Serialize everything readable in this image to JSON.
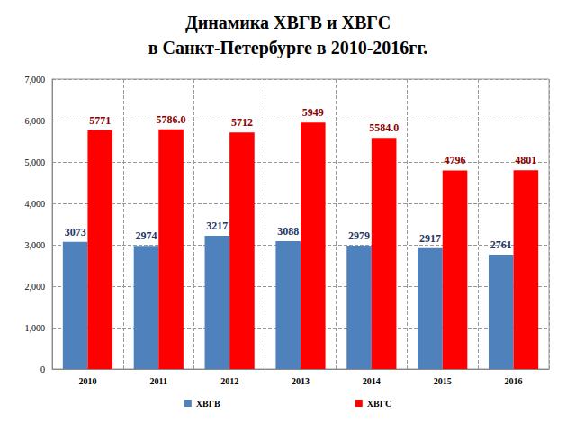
{
  "chart_data": {
    "type": "bar",
    "title": "Динамика ХВГВ и ХВГС\nв Санкт-Петербурге в 2010-2016гг.",
    "categories": [
      "2010",
      "2011",
      "2012",
      "2013",
      "2014",
      "2015",
      "2016"
    ],
    "series": [
      {
        "name": "ХВГВ",
        "color": "#4f81bd",
        "values": [
          3073,
          2974,
          3217,
          3088,
          2979,
          2917,
          2761
        ]
      },
      {
        "name": "ХВГС",
        "color": "#ff0000",
        "values": [
          5771,
          5786,
          5712,
          5949,
          5584,
          4796,
          4801
        ],
        "value_labels": [
          "5771",
          "5786.0",
          "5712",
          "5949",
          "5584.0",
          "4796",
          "4801"
        ]
      }
    ],
    "ylim": [
      0,
      7000
    ],
    "yticks": [
      0,
      {
        "value": 1000,
        "label": "1,000"
      },
      {
        "value": 2000,
        "label": "2,000"
      },
      {
        "value": 3000,
        "label": "3,000"
      },
      {
        "value": 4000,
        "label": "4,000"
      },
      {
        "value": 5000,
        "label": "5,000"
      },
      {
        "value": 6000,
        "label": "6,000"
      },
      {
        "value": 7000,
        "label": "7,000"
      }
    ],
    "grid": true,
    "legend": "bottom",
    "data_labels": true
  }
}
